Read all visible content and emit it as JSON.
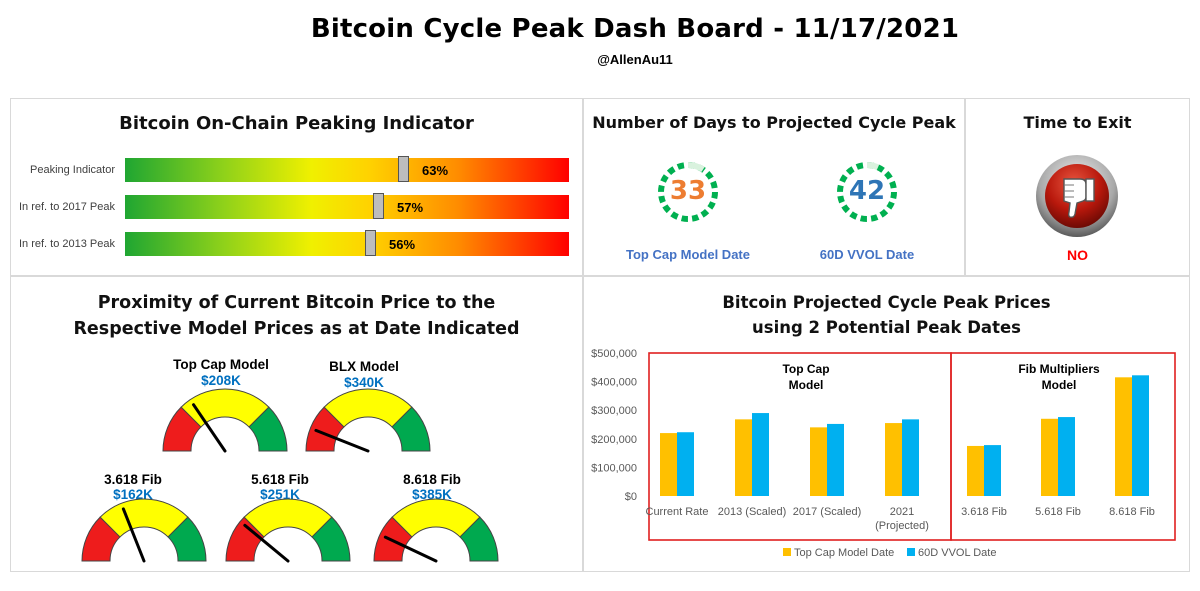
{
  "header": {
    "title": "Bitcoin Cycle Peak Dash Board - 11/17/2021",
    "subtitle": "@AllenAu11"
  },
  "onchain": {
    "title": "Bitcoin On-Chain Peaking Indicator",
    "bars": [
      {
        "label": "Peaking Indicator",
        "value": 63,
        "display": "63%"
      },
      {
        "label": "In ref. to 2017 Peak",
        "value": 57,
        "display": "57%"
      },
      {
        "label": "In ref. to 2013 Peak",
        "value": 56,
        "display": "56%"
      }
    ]
  },
  "days": {
    "title": "Number of Days to Projected Cycle Peak",
    "items": [
      {
        "value": "33",
        "label": "Top Cap Model Date",
        "color": "#ed7d31"
      },
      {
        "value": "42",
        "label": "60D VVOL Date",
        "color": "#4472c4"
      }
    ]
  },
  "exit": {
    "title": "Time to Exit",
    "status": "NO",
    "icon": "thumbs-down-icon"
  },
  "proximity": {
    "title_line1": "Proximity of Current Bitcoin Price to the",
    "title_line2": "Respective Model Prices as at Date Indicated",
    "gauges": [
      {
        "name": "Top Cap Model",
        "price": "$208K",
        "needle": 0.31
      },
      {
        "name": "BLX Model",
        "price": "$340K",
        "needle": 0.12
      },
      {
        "name": "3.618 Fib",
        "price": "$162K",
        "needle": 0.38
      },
      {
        "name": "5.618 Fib",
        "price": "$251K",
        "needle": 0.22
      },
      {
        "name": "8.618 Fib",
        "price": "$385K",
        "needle": 0.14
      }
    ]
  },
  "projected": {
    "title_line1": "Bitcoin Projected Cycle Peak Prices",
    "title_line2": "using 2 Potential Peak Dates",
    "group_top_cap_line1": "Top Cap",
    "group_top_cap_line2": "Model",
    "group_fib_line1": "Fib Multipliers",
    "group_fib_line2": "Model"
  },
  "chart_data": {
    "type": "bar",
    "title": "Bitcoin Projected Cycle Peak Prices using 2 Potential Peak Dates",
    "categories": [
      "Current Rate",
      "2013 (Scaled)",
      "2017 (Scaled)",
      "2021 (Projected)",
      "3.618 Fib",
      "5.618 Fib",
      "8.618 Fib"
    ],
    "category_lines": [
      [
        "Current Rate"
      ],
      [
        "2013 (Scaled)"
      ],
      [
        "2017 (Scaled)"
      ],
      [
        "2021",
        "(Projected)"
      ],
      [
        "3.618 Fib"
      ],
      [
        "5.618 Fib"
      ],
      [
        "8.618 Fib"
      ]
    ],
    "series": [
      {
        "name": "Top Cap Model Date",
        "color": "#ffc000",
        "values": [
          220000,
          268000,
          240000,
          255000,
          175000,
          270000,
          415000
        ]
      },
      {
        "name": "60D VVOL Date",
        "color": "#00b0f0",
        "values": [
          223000,
          290000,
          252000,
          268000,
          178000,
          276000,
          422000
        ]
      }
    ],
    "y_ticks": [
      "$0",
      "$100,000",
      "$200,000",
      "$300,000",
      "$400,000",
      "$500,000"
    ],
    "ylim": [
      0,
      500000
    ],
    "legend": "bottom",
    "grid": false
  }
}
